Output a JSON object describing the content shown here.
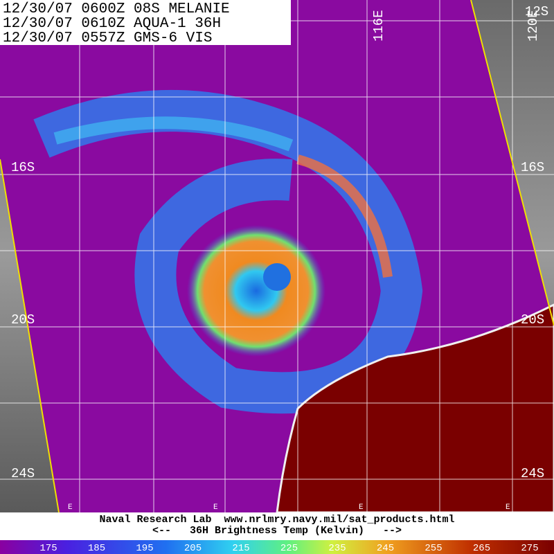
{
  "header": {
    "lines": [
      "12/30/07 0600Z 08S MELANIE",
      "12/30/07 0610Z AQUA-1 36H",
      "12/30/07 0557Z GMS-6 VIS"
    ]
  },
  "grid_labels": {
    "latitudes": [
      "16S",
      "20S",
      "24S"
    ],
    "longitudes": [
      "116E",
      "120E"
    ],
    "top_right": "12S",
    "bottom_markers": [
      "E",
      "E",
      "E",
      "E"
    ]
  },
  "footer": {
    "credit": "Naval Research Lab  www.nrlmry.navy.mil/sat_products.html",
    "caption": "<--   36H Brightness Temp (Kelvin)   -->"
  },
  "colorbar": {
    "labels": [
      "175",
      "185",
      "195",
      "205",
      "215",
      "225",
      "235",
      "245",
      "255",
      "265",
      "275"
    ]
  }
}
